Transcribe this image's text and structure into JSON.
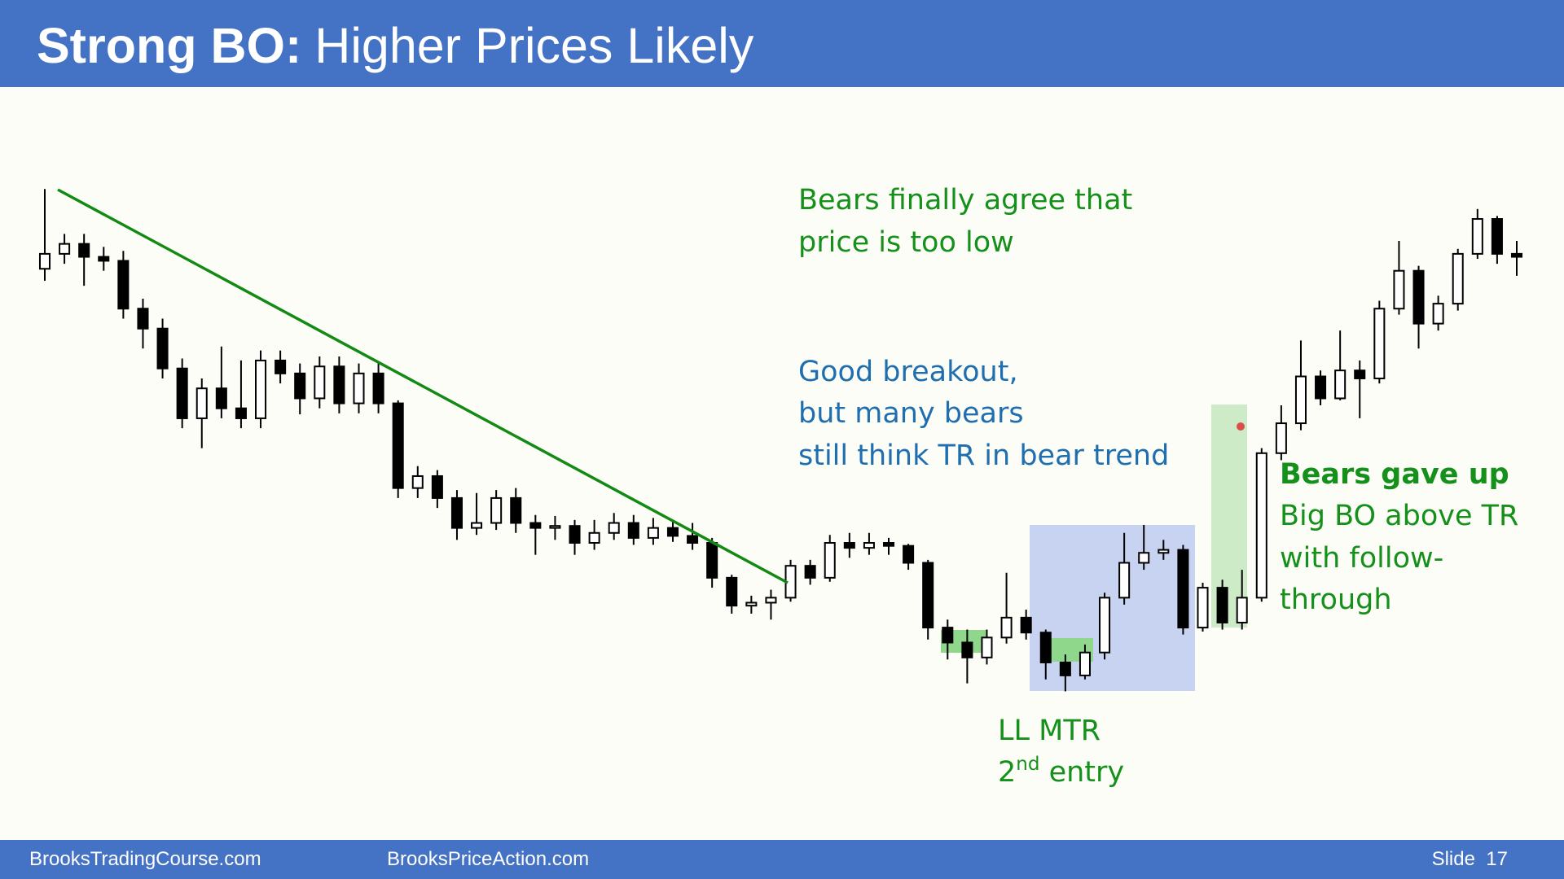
{
  "header": {
    "title_bold": "Strong BO:",
    "title_rest": "Higher Prices Likely"
  },
  "chart_data": {
    "type": "candlestick",
    "open": [
      612,
      627,
      637,
      624,
      620,
      572,
      552,
      512,
      462,
      492,
      472,
      462,
      520,
      507,
      482,
      514,
      477,
      507,
      477,
      392,
      404,
      382,
      352,
      357,
      382,
      357,
      352,
      354,
      337,
      347,
      357,
      342,
      352,
      344,
      337,
      302,
      274,
      277,
      282,
      314,
      302,
      337,
      332,
      337,
      334,
      317,
      252,
      237,
      222,
      242,
      262,
      247,
      217,
      204,
      227,
      282,
      317,
      327,
      330,
      252,
      292,
      257,
      282,
      427,
      457,
      504,
      482,
      510,
      502,
      572,
      610,
      557,
      577,
      627,
      662,
      627
    ],
    "high": [
      692,
      647,
      647,
      634,
      630,
      582,
      562,
      522,
      502,
      534,
      520,
      530,
      530,
      517,
      524,
      524,
      517,
      517,
      480,
      414,
      410,
      390,
      387,
      390,
      392,
      365,
      364,
      360,
      360,
      367,
      365,
      362,
      360,
      357,
      342,
      305,
      284,
      290,
      320,
      320,
      345,
      347,
      347,
      342,
      336,
      320,
      260,
      250,
      250,
      307,
      270,
      250,
      225,
      235,
      287,
      347,
      355,
      340,
      335,
      297,
      300,
      310,
      432,
      475,
      540,
      510,
      550,
      520,
      580,
      640,
      615,
      585,
      632,
      672,
      665,
      640
    ],
    "low": [
      600,
      617,
      595,
      610,
      562,
      532,
      502,
      452,
      432,
      462,
      452,
      452,
      497,
      466,
      472,
      467,
      467,
      467,
      382,
      382,
      372,
      340,
      345,
      350,
      347,
      325,
      340,
      325,
      330,
      340,
      335,
      335,
      338,
      330,
      292,
      266,
      266,
      260,
      278,
      295,
      298,
      322,
      325,
      325,
      310,
      240,
      220,
      196,
      215,
      236,
      240,
      200,
      188,
      200,
      220,
      275,
      310,
      320,
      245,
      248,
      250,
      250,
      278,
      420,
      450,
      475,
      480,
      462,
      497,
      566,
      532,
      550,
      570,
      622,
      617,
      605
    ],
    "close": [
      627,
      637,
      624,
      620,
      572,
      552,
      512,
      462,
      492,
      472,
      462,
      520,
      507,
      482,
      514,
      477,
      507,
      477,
      392,
      404,
      382,
      352,
      357,
      382,
      357,
      352,
      354,
      337,
      347,
      357,
      342,
      352,
      344,
      337,
      302,
      274,
      277,
      282,
      314,
      302,
      337,
      332,
      337,
      334,
      317,
      252,
      237,
      222,
      242,
      262,
      247,
      217,
      204,
      227,
      282,
      317,
      327,
      330,
      252,
      292,
      257,
      282,
      427,
      457,
      504,
      482,
      510,
      502,
      572,
      610,
      557,
      577,
      627,
      662,
      627,
      624
    ],
    "ylim": [
      150,
      720
    ],
    "up_color": "#ffffff",
    "down_color": "#000000"
  },
  "annotations": {
    "bears_agree": [
      "Bears finally agree that",
      "price is too low"
    ],
    "good_breakout": [
      "Good breakout,",
      "but many bears",
      "still think TR in bear trend"
    ],
    "ll_mtr": {
      "line1": "LL MTR",
      "line2_main": "2",
      "line2_sup": "nd",
      "line2_rest": " entry"
    },
    "bears_gave_up": {
      "bold": "Bears gave up",
      "lines": [
        "Big BO above TR",
        "with follow-",
        "through"
      ]
    }
  },
  "footer": {
    "left": "BrooksTradingCourse.com",
    "middle": "BrooksPriceAction.com",
    "right": "Slide  17"
  }
}
